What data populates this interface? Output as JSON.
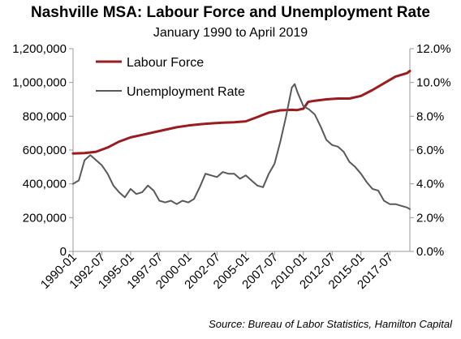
{
  "chart_data": {
    "type": "line",
    "title": "Nashville MSA: Labour Force and Unemployment Rate",
    "subtitle": "January 1990 to April 2019",
    "source": "Source: Bureau of Labor Statistics, Hamilton Capital",
    "x_tick_labels": [
      "1990-01",
      "1992-07",
      "1995-01",
      "1997-07",
      "2000-01",
      "2002-07",
      "2005-01",
      "2007-07",
      "2010-01",
      "2012-07",
      "2015-01",
      "2017-07"
    ],
    "x_range": [
      "1990-01",
      "2019-04"
    ],
    "y_left": {
      "ylim": [
        0,
        1200000
      ],
      "ticks": [
        0,
        200000,
        400000,
        600000,
        800000,
        1000000,
        1200000
      ],
      "tick_labels": [
        "0",
        "200,000",
        "400,000",
        "600,000",
        "800,000",
        "1,000,000",
        "1,200,000"
      ]
    },
    "y_right": {
      "ylim": [
        0,
        12
      ],
      "ticks": [
        0,
        2,
        4,
        6,
        8,
        10,
        12
      ],
      "tick_labels": [
        "0.0%",
        "2.0%",
        "4.0%",
        "6.0%",
        "8.0%",
        "10.0%",
        "12.0%"
      ]
    },
    "grid": false,
    "legend": "top-left",
    "series": [
      {
        "name": "Labour Force",
        "axis": "left",
        "color": "#9b1c1f",
        "points": [
          [
            "1990-01",
            580000
          ],
          [
            "1991-01",
            582000
          ],
          [
            "1992-01",
            590000
          ],
          [
            "1993-01",
            615000
          ],
          [
            "1994-01",
            650000
          ],
          [
            "1995-01",
            675000
          ],
          [
            "1996-01",
            690000
          ],
          [
            "1997-01",
            705000
          ],
          [
            "1998-01",
            720000
          ],
          [
            "1999-01",
            735000
          ],
          [
            "2000-01",
            745000
          ],
          [
            "2001-01",
            752000
          ],
          [
            "2002-01",
            758000
          ],
          [
            "2003-01",
            762000
          ],
          [
            "2004-01",
            764000
          ],
          [
            "2005-01",
            770000
          ],
          [
            "2006-01",
            795000
          ],
          [
            "2007-01",
            822000
          ],
          [
            "2008-01",
            835000
          ],
          [
            "2009-01",
            838000
          ],
          [
            "2009-06",
            836000
          ],
          [
            "2010-01",
            845000
          ],
          [
            "2010-06",
            885000
          ],
          [
            "2011-01",
            892000
          ],
          [
            "2012-01",
            900000
          ],
          [
            "2013-01",
            905000
          ],
          [
            "2014-01",
            905000
          ],
          [
            "2015-01",
            920000
          ],
          [
            "2016-01",
            955000
          ],
          [
            "2017-01",
            995000
          ],
          [
            "2018-01",
            1035000
          ],
          [
            "2019-01",
            1055000
          ],
          [
            "2019-04",
            1068000
          ]
        ]
      },
      {
        "name": "Unemployment Rate",
        "axis": "right",
        "color": "#595959",
        "points": [
          [
            "1990-01",
            4.0
          ],
          [
            "1990-07",
            4.2
          ],
          [
            "1991-01",
            5.4
          ],
          [
            "1991-07",
            5.7
          ],
          [
            "1992-01",
            5.4
          ],
          [
            "1992-07",
            5.1
          ],
          [
            "1993-01",
            4.6
          ],
          [
            "1993-07",
            3.9
          ],
          [
            "1994-01",
            3.5
          ],
          [
            "1994-07",
            3.2
          ],
          [
            "1995-01",
            3.7
          ],
          [
            "1995-07",
            3.4
          ],
          [
            "1996-01",
            3.5
          ],
          [
            "1996-07",
            3.9
          ],
          [
            "1997-01",
            3.6
          ],
          [
            "1997-07",
            3.0
          ],
          [
            "1998-01",
            2.9
          ],
          [
            "1998-07",
            3.0
          ],
          [
            "1999-01",
            2.8
          ],
          [
            "1999-07",
            3.0
          ],
          [
            "2000-01",
            2.9
          ],
          [
            "2000-07",
            3.1
          ],
          [
            "2001-01",
            3.8
          ],
          [
            "2001-07",
            4.6
          ],
          [
            "2002-01",
            4.5
          ],
          [
            "2002-07",
            4.4
          ],
          [
            "2003-01",
            4.7
          ],
          [
            "2003-07",
            4.6
          ],
          [
            "2004-01",
            4.6
          ],
          [
            "2004-07",
            4.3
          ],
          [
            "2005-01",
            4.5
          ],
          [
            "2005-07",
            4.2
          ],
          [
            "2006-01",
            3.9
          ],
          [
            "2006-07",
            3.8
          ],
          [
            "2007-01",
            4.6
          ],
          [
            "2007-07",
            5.2
          ],
          [
            "2008-01",
            6.5
          ],
          [
            "2008-07",
            8.0
          ],
          [
            "2009-01",
            9.7
          ],
          [
            "2009-04",
            9.9
          ],
          [
            "2009-07",
            9.4
          ],
          [
            "2010-01",
            8.6
          ],
          [
            "2010-07",
            8.4
          ],
          [
            "2011-01",
            8.1
          ],
          [
            "2011-07",
            7.4
          ],
          [
            "2012-01",
            6.6
          ],
          [
            "2012-07",
            6.3
          ],
          [
            "2013-01",
            6.2
          ],
          [
            "2013-07",
            5.9
          ],
          [
            "2014-01",
            5.3
          ],
          [
            "2014-07",
            5.0
          ],
          [
            "2015-01",
            4.6
          ],
          [
            "2015-07",
            4.1
          ],
          [
            "2016-01",
            3.7
          ],
          [
            "2016-07",
            3.6
          ],
          [
            "2017-01",
            3.0
          ],
          [
            "2017-07",
            2.8
          ],
          [
            "2018-01",
            2.8
          ],
          [
            "2018-07",
            2.7
          ],
          [
            "2019-01",
            2.6
          ],
          [
            "2019-04",
            2.5
          ]
        ]
      }
    ]
  }
}
